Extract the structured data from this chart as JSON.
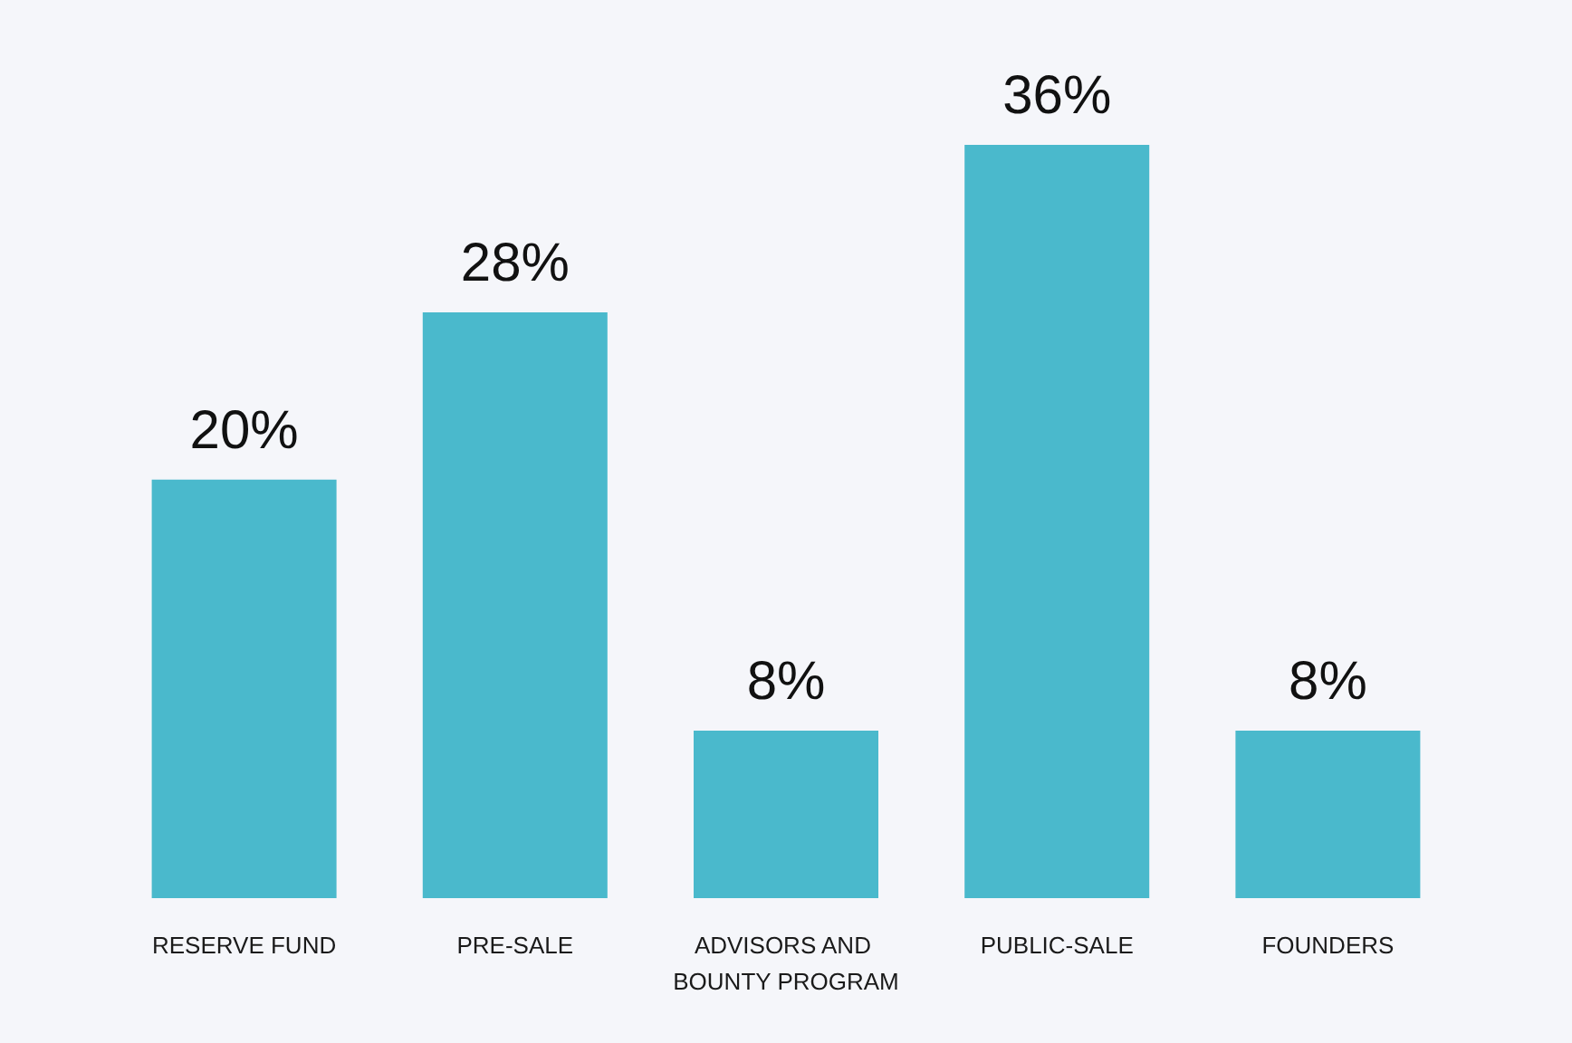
{
  "chart_data": {
    "type": "bar",
    "categories": [
      "RESERVE FUND",
      "PRE-SALE",
      "ADVISORS AND BOUNTY PROGRAM",
      "PUBLIC-SALE",
      "FOUNDERS"
    ],
    "values": [
      20,
      28,
      8,
      36,
      8
    ],
    "value_labels": [
      "20%",
      "28%",
      "8%",
      "36%",
      "8%"
    ],
    "color": "#4ab9cc"
  }
}
